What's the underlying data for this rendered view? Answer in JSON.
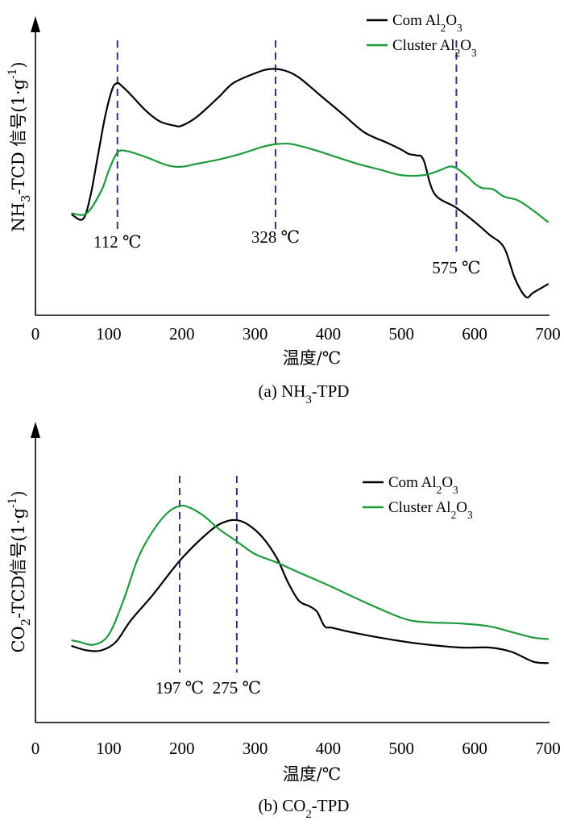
{
  "colors": {
    "com": "#000000",
    "cluster": "#1e9a3c",
    "peak_line": "#3a2d86"
  },
  "chart_data": [
    {
      "type": "line",
      "title": "",
      "caption": "(a) NH₃-TPD",
      "xlabel": "温度/℃",
      "ylabel": "NH₃-TCD 信号(1·g⁻¹)",
      "xlim": [
        0,
        700
      ],
      "ylim": [
        0,
        100
      ],
      "xticks": [
        0,
        100,
        200,
        300,
        400,
        500,
        600,
        700
      ],
      "legend_position": "top-right",
      "series": [
        {
          "name": "Com Al₂O₃",
          "color": "#000000",
          "x": [
            50,
            65,
            75,
            85,
            95,
            105,
            112,
            118,
            130,
            150,
            170,
            190,
            200,
            220,
            250,
            270,
            300,
            320,
            340,
            360,
            390,
            420,
            450,
            480,
            500,
            510,
            520,
            530,
            545,
            575,
            600,
            620,
            640,
            655,
            670,
            680,
            700
          ],
          "y": [
            35.5,
            34,
            42,
            56,
            70,
            80,
            82,
            81,
            78,
            72.5,
            68.5,
            67,
            67,
            70,
            77,
            82,
            85.5,
            87,
            86.5,
            84,
            77.5,
            71,
            64.5,
            61,
            58.5,
            57,
            56.5,
            55,
            43,
            38,
            33,
            28.5,
            24,
            13,
            6.5,
            8,
            11
          ]
        },
        {
          "name": "Cluster Al₂O₃",
          "color": "#1e9a3c",
          "x": [
            50,
            70,
            90,
            100,
            112,
            125,
            150,
            180,
            200,
            220,
            250,
            280,
            310,
            330,
            350,
            380,
            410,
            440,
            470,
            500,
            530,
            550,
            565,
            575,
            590,
            600,
            610,
            625,
            640,
            660,
            680,
            700
          ],
          "y": [
            36,
            36,
            44,
            51,
            57.5,
            58,
            56,
            53,
            52.5,
            53.5,
            55,
            57,
            59.5,
            60.5,
            60.5,
            58.5,
            56,
            53.5,
            51.5,
            49.5,
            49.5,
            51,
            52.5,
            52,
            49,
            46.5,
            45,
            44.5,
            42,
            40.5,
            37,
            33
          ]
        }
      ],
      "peaks": [
        {
          "x": 112,
          "label": "112 ℃"
        },
        {
          "x": 328,
          "label": "328 ℃"
        },
        {
          "x": 575,
          "label": "575 ℃"
        }
      ]
    },
    {
      "type": "line",
      "title": "",
      "caption": "(b) CO₂-TPD",
      "xlabel": "温度/℃",
      "ylabel": "CO₂-TCD信号(1·g⁻¹)",
      "xlim": [
        0,
        700
      ],
      "ylim": [
        0,
        100
      ],
      "xticks": [
        0,
        100,
        200,
        300,
        400,
        500,
        600,
        700
      ],
      "legend_position": "top-right",
      "series": [
        {
          "name": "Com Al₂O₃",
          "color": "#000000",
          "x": [
            50,
            70,
            90,
            110,
            130,
            160,
            200,
            240,
            260,
            275,
            290,
            310,
            330,
            345,
            360,
            375,
            385,
            395,
            405,
            430,
            470,
            520,
            580,
            620,
            650,
            680,
            700
          ],
          "y": [
            27,
            25.5,
            25.5,
            28.5,
            36,
            45,
            58,
            68,
            71,
            71.5,
            70,
            65.5,
            58,
            49.5,
            43,
            41,
            39,
            34,
            33.5,
            32,
            30,
            28,
            26.5,
            26.5,
            25,
            21.5,
            21
          ]
        },
        {
          "name": "Cluster Al₂O₃",
          "color": "#1e9a3c",
          "x": [
            50,
            60,
            80,
            100,
            120,
            140,
            160,
            180,
            197,
            210,
            230,
            250,
            275,
            300,
            330,
            360,
            400,
            450,
            500,
            530,
            580,
            620,
            650,
            680,
            700
          ],
          "y": [
            29,
            28.5,
            27.5,
            31,
            43,
            58,
            67.5,
            74,
            76.5,
            76,
            73,
            68.5,
            64,
            59.5,
            56.5,
            53,
            48.5,
            42.5,
            37,
            35.5,
            35,
            34,
            32,
            30,
            29.5
          ]
        }
      ],
      "peaks": [
        {
          "x": 197,
          "label": "197 ℃"
        },
        {
          "x": 275,
          "label": "275 ℃"
        }
      ]
    }
  ]
}
